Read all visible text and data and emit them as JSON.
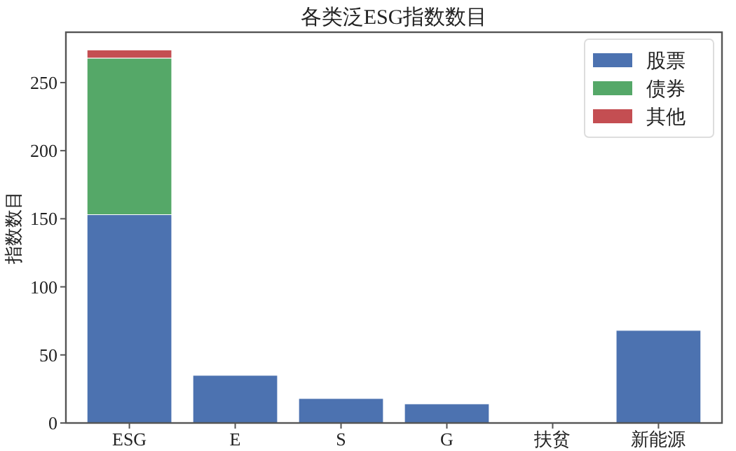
{
  "chart_data": {
    "type": "bar",
    "title": "各类泛ESG指数数目",
    "ylabel": "指数数目",
    "categories": [
      "ESG",
      "E",
      "S",
      "G",
      "扶贫",
      "新能源"
    ],
    "stacked": true,
    "series": [
      {
        "name": "股票",
        "color": "#4c72b0",
        "values": [
          153,
          35,
          18,
          14,
          null,
          68
        ]
      },
      {
        "name": "债券",
        "color": "#55a868",
        "values": [
          115,
          0,
          0,
          0,
          null,
          0
        ]
      },
      {
        "name": "其他",
        "color": "#c44e52",
        "values": [
          6,
          0,
          0,
          0,
          null,
          0
        ]
      }
    ],
    "ylim": [
      0,
      287
    ],
    "yticks": [
      0,
      50,
      100,
      150,
      200,
      250
    ],
    "grid": false,
    "legend": "top right"
  }
}
